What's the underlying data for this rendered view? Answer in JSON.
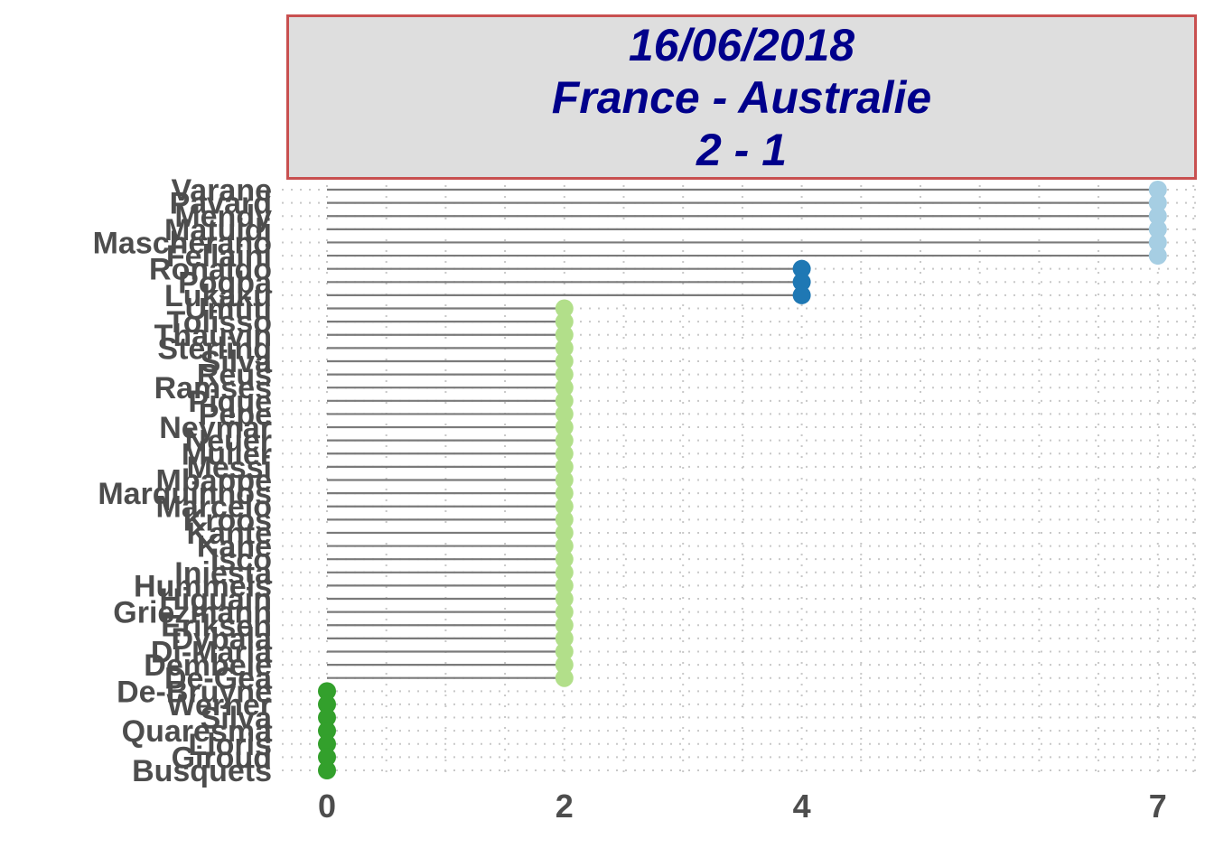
{
  "header": {
    "date": "16/06/2018",
    "match": "France - Australie",
    "score": "2 - 1"
  },
  "colors": {
    "title_bg": "#dedede",
    "title_border": "#c85050",
    "title_text": "#00008b",
    "label_text": "#4d4d4d",
    "stem": "#7a7a7a",
    "grid": "#c8c8c8"
  },
  "chart_data": {
    "type": "lollipop",
    "orientation": "horizontal",
    "title": "16/06/2018\nFrance - Australie\n2 - 1",
    "xlabel": "",
    "ylabel": "",
    "x_ticks": [
      0,
      2,
      4,
      7
    ],
    "grid": "dotted",
    "legend": "none",
    "items": [
      {
        "name": "Varane",
        "value": 7,
        "color": "#a6cee3"
      },
      {
        "name": "Pavard",
        "value": 7,
        "color": "#a6cee3"
      },
      {
        "name": "Mendy",
        "value": 7,
        "color": "#a6cee3"
      },
      {
        "name": "Matuidi",
        "value": 7,
        "color": "#a6cee3"
      },
      {
        "name": "Mascherano",
        "value": 7,
        "color": "#a6cee3"
      },
      {
        "name": "Fellaini",
        "value": 7,
        "color": "#a6cee3"
      },
      {
        "name": "Ronaldo",
        "value": 4,
        "color": "#1f78b4"
      },
      {
        "name": "Pogba",
        "value": 4,
        "color": "#1f78b4"
      },
      {
        "name": "Lukaku",
        "value": 4,
        "color": "#1f78b4"
      },
      {
        "name": "Umtiti",
        "value": 2,
        "color": "#b2df8a"
      },
      {
        "name": "Tolisso",
        "value": 2,
        "color": "#b2df8a"
      },
      {
        "name": "Thauvin",
        "value": 2,
        "color": "#b2df8a"
      },
      {
        "name": "Sterling",
        "value": 2,
        "color": "#b2df8a"
      },
      {
        "name": "Silva",
        "value": 2,
        "color": "#b2df8a"
      },
      {
        "name": "Reus",
        "value": 2,
        "color": "#b2df8a"
      },
      {
        "name": "Ramses",
        "value": 2,
        "color": "#b2df8a"
      },
      {
        "name": "Pique",
        "value": 2,
        "color": "#b2df8a"
      },
      {
        "name": "Pepe",
        "value": 2,
        "color": "#b2df8a"
      },
      {
        "name": "Neymar",
        "value": 2,
        "color": "#b2df8a"
      },
      {
        "name": "Neuer",
        "value": 2,
        "color": "#b2df8a"
      },
      {
        "name": "Muller",
        "value": 2,
        "color": "#b2df8a"
      },
      {
        "name": "Messi",
        "value": 2,
        "color": "#b2df8a"
      },
      {
        "name": "Mbappe",
        "value": 2,
        "color": "#b2df8a"
      },
      {
        "name": "Marquinhos",
        "value": 2,
        "color": "#b2df8a"
      },
      {
        "name": "Marcelo",
        "value": 2,
        "color": "#b2df8a"
      },
      {
        "name": "Kroos",
        "value": 2,
        "color": "#b2df8a"
      },
      {
        "name": "Kante",
        "value": 2,
        "color": "#b2df8a"
      },
      {
        "name": "Kane",
        "value": 2,
        "color": "#b2df8a"
      },
      {
        "name": "Isco",
        "value": 2,
        "color": "#b2df8a"
      },
      {
        "name": "Iniesta",
        "value": 2,
        "color": "#b2df8a"
      },
      {
        "name": "Hummels",
        "value": 2,
        "color": "#b2df8a"
      },
      {
        "name": "Higuain",
        "value": 2,
        "color": "#b2df8a"
      },
      {
        "name": "Griezmann",
        "value": 2,
        "color": "#b2df8a"
      },
      {
        "name": "Eriksen",
        "value": 2,
        "color": "#b2df8a"
      },
      {
        "name": "Dybala",
        "value": 2,
        "color": "#b2df8a"
      },
      {
        "name": "Di-Maria",
        "value": 2,
        "color": "#b2df8a"
      },
      {
        "name": "Dembele",
        "value": 2,
        "color": "#b2df8a"
      },
      {
        "name": "De-Gea",
        "value": 2,
        "color": "#b2df8a"
      },
      {
        "name": "De-Bruyne",
        "value": 0,
        "color": "#33a02c"
      },
      {
        "name": "Werner",
        "value": 0,
        "color": "#33a02c"
      },
      {
        "name": "Silva",
        "value": 0,
        "color": "#33a02c"
      },
      {
        "name": "Quaresma",
        "value": 0,
        "color": "#33a02c"
      },
      {
        "name": "Lloris",
        "value": 0,
        "color": "#33a02c"
      },
      {
        "name": "Giroud",
        "value": 0,
        "color": "#33a02c"
      },
      {
        "name": "Busquets",
        "value": 0,
        "color": "#33a02c"
      }
    ]
  }
}
